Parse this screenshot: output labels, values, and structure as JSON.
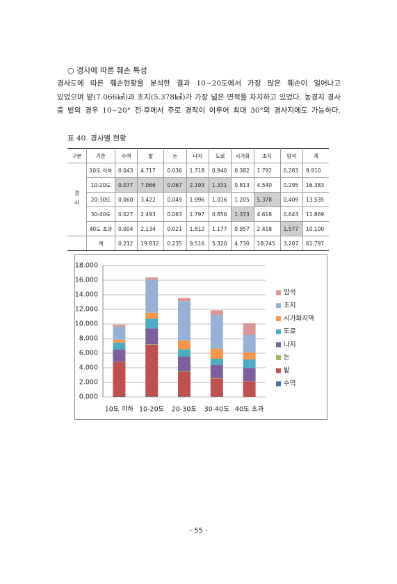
{
  "heading": "○ 경사에 따른 훼손 특성",
  "paragraph": [
    "경사도에 따른 훼손현황을 분석한 결과 10~20도에서 가장 많은 훼손이 일어나고",
    "있었으며 밭(7.066㎢)과 초지(5.378㎢)가 가장 넓은 면적을 차지하고 있었다. 농경지 경사",
    "중 밭의 경우 10~20° 전·후에서 주로 경작이 이루어 최대 30°의 경사지에도 가능하다."
  ],
  "table": {
    "caption": "표 40. 경사별 현황",
    "header": [
      "구분",
      "기준",
      "수역",
      "밭",
      "논",
      "나지",
      "도로",
      "시가화",
      "초지",
      "암석",
      "계"
    ],
    "group": "경사",
    "rows": [
      {
        "label": "10도 이하",
        "cells": [
          {
            "text": "0.043"
          },
          {
            "text": "4.717"
          },
          {
            "text": "0.036"
          },
          {
            "text": "1.718"
          },
          {
            "text": "0.940"
          },
          {
            "text": "0.382"
          },
          {
            "text": "1.792"
          },
          {
            "text": "0.283"
          },
          {
            "text": "9.910"
          }
        ]
      },
      {
        "label": "10-20도",
        "cells": [
          {
            "text": "0.077",
            "shaded": true
          },
          {
            "text": "7.066",
            "shaded": true
          },
          {
            "text": "0.067",
            "shaded": true
          },
          {
            "text": "2.193",
            "shaded": true
          },
          {
            "text": "1.331",
            "shaded": true
          },
          {
            "text": "0.813"
          },
          {
            "text": "4.540"
          },
          {
            "text": "0.295"
          },
          {
            "text": "16.383"
          }
        ]
      },
      {
        "label": "20-30도",
        "cells": [
          {
            "text": "0.060"
          },
          {
            "text": "3.422"
          },
          {
            "text": "0.049"
          },
          {
            "text": "1.996"
          },
          {
            "text": "1.016"
          },
          {
            "text": "1.205"
          },
          {
            "text": "5.378",
            "shaded": true
          },
          {
            "text": "0.409"
          },
          {
            "text": "13.535"
          }
        ]
      },
      {
        "label": "30-40도",
        "cells": [
          {
            "text": "0.027"
          },
          {
            "text": "2.493"
          },
          {
            "text": "0.063"
          },
          {
            "text": "1.797"
          },
          {
            "text": "0.856"
          },
          {
            "text": "1.373",
            "shaded": true
          },
          {
            "text": "4.618"
          },
          {
            "text": "0.643"
          },
          {
            "text": "11.869"
          }
        ]
      },
      {
        "label": "40도 초과",
        "cells": [
          {
            "text": "0.004"
          },
          {
            "text": "2.134"
          },
          {
            "text": "0.021"
          },
          {
            "text": "1.812"
          },
          {
            "text": "1.177"
          },
          {
            "text": "0.957"
          },
          {
            "text": "2.418"
          },
          {
            "text": "1.577",
            "shaded": true
          },
          {
            "text": "10.100"
          }
        ]
      },
      {
        "label": "계",
        "cells": [
          {
            "text": "0.212"
          },
          {
            "text": "19.832"
          },
          {
            "text": "0.235"
          },
          {
            "text": "9.516"
          },
          {
            "text": "5.320"
          },
          {
            "text": "4.730"
          },
          {
            "text": "18.745"
          },
          {
            "text": "3.207"
          },
          {
            "text": "61.797"
          }
        ]
      }
    ]
  },
  "chart_data": {
    "type": "stacked_bar",
    "categories": [
      "10도 이하",
      "10-20도",
      "20-30도",
      "30-40도",
      "40도 초과"
    ],
    "series": [
      {
        "name": "수역",
        "color": "#4a6ea5",
        "values": [
          0.043,
          0.077,
          0.06,
          0.027,
          0.004
        ]
      },
      {
        "name": "밭",
        "color": "#c0504d",
        "values": [
          4.717,
          7.066,
          3.422,
          2.493,
          2.134
        ]
      },
      {
        "name": "논",
        "color": "#9bbb59",
        "values": [
          0.036,
          0.067,
          0.049,
          0.063,
          0.021
        ]
      },
      {
        "name": "나지",
        "color": "#7d5fa0",
        "values": [
          1.718,
          2.193,
          1.996,
          1.797,
          1.812
        ]
      },
      {
        "name": "도로",
        "color": "#4bacc6",
        "values": [
          0.94,
          1.331,
          1.016,
          0.856,
          1.177
        ]
      },
      {
        "name": "시가화지역",
        "color": "#f79646",
        "values": [
          0.382,
          0.813,
          1.205,
          1.373,
          0.957
        ]
      },
      {
        "name": "초지",
        "color": "#95b3d7",
        "values": [
          1.792,
          4.54,
          5.378,
          4.618,
          2.418
        ]
      },
      {
        "name": "암석",
        "color": "#d99694",
        "values": [
          0.283,
          0.295,
          0.409,
          0.643,
          1.577
        ]
      }
    ],
    "ylim": [
      0,
      18
    ],
    "yticks": [
      {
        "value": 0,
        "label": "0.000"
      },
      {
        "value": 2,
        "label": "2.000"
      },
      {
        "value": 4,
        "label": "4.000"
      },
      {
        "value": 6,
        "label": "6.000"
      },
      {
        "value": 8,
        "label": "8.000"
      },
      {
        "value": 10,
        "label": "10.000"
      },
      {
        "value": 12,
        "label": "12.000"
      },
      {
        "value": 14,
        "label": "14.000"
      },
      {
        "value": 16,
        "label": "16.000"
      },
      {
        "value": 18,
        "label": "18.000"
      }
    ],
    "grid": true,
    "legend": "right"
  },
  "page_number": "- 55 -"
}
